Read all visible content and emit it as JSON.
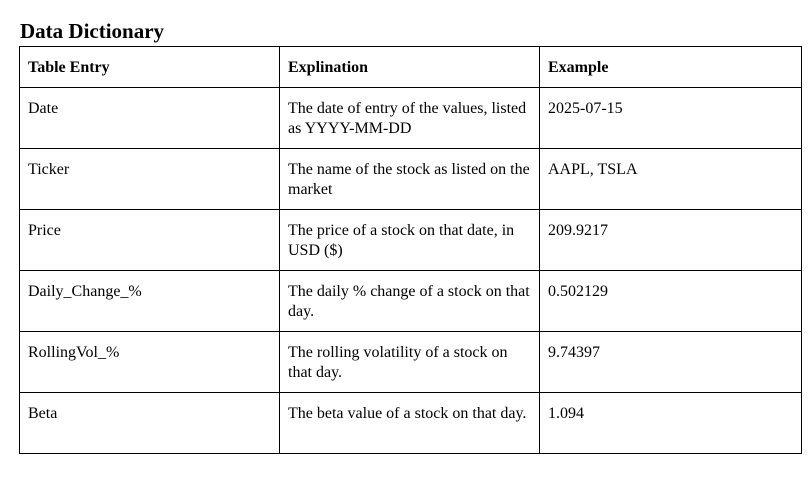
{
  "title": "Data Dictionary",
  "table": {
    "headers": [
      "Table Entry",
      "Explination",
      "Example"
    ],
    "rows": [
      [
        "Date",
        "The date of entry of the values, listed as YYYY-MM-DD",
        "2025-07-15"
      ],
      [
        "Ticker",
        "The name of the stock as listed on the market",
        "AAPL, TSLA"
      ],
      [
        "Price",
        "The price of a stock on that date, in USD ($)",
        "209.9217"
      ],
      [
        "Daily_Change_%",
        "The daily % change of a stock on that day.",
        "0.502129"
      ],
      [
        "RollingVol_%",
        "The rolling volatility of a stock on that day.",
        "9.74397"
      ],
      [
        "Beta",
        "The beta value of a stock on that day.",
        "1.094"
      ]
    ]
  }
}
